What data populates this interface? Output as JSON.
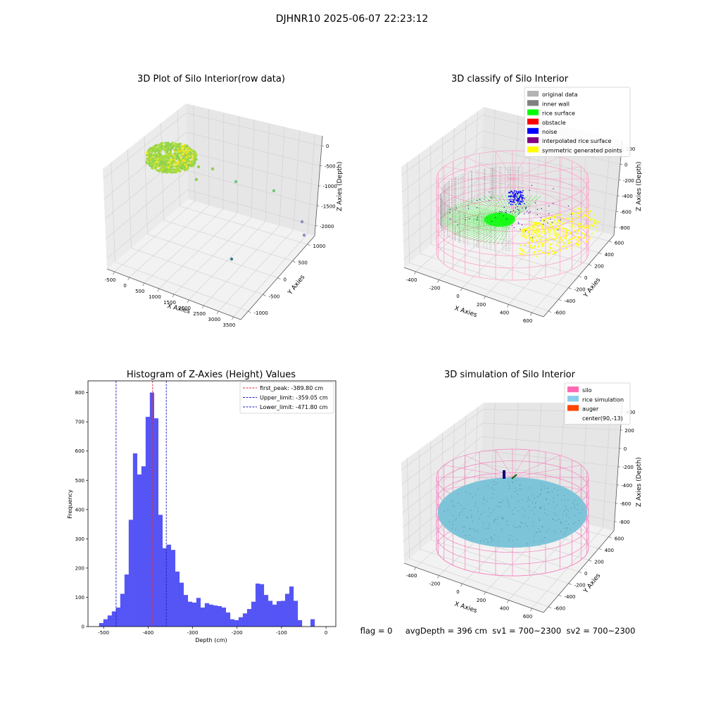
{
  "figure": {
    "suptitle": "DJHNR10 2025-06-07 22:23:12",
    "status_line": "flag = 0     avgDepth = 396 cm  sv1 = 700~2300  sv2 = 700~2300"
  },
  "chart_data": [
    {
      "id": "raw",
      "type": "scatter",
      "title": "3D Plot of Silo Interior(row data)",
      "xlabel": "X Axies",
      "ylabel": "Y Axies",
      "zlabel": "Z Axies (Depth)",
      "x_ticks": [
        "-500",
        "0",
        "500",
        "1000",
        "1500",
        "2000",
        "2500",
        "3000",
        "3500"
      ],
      "y_ticks": [
        "-1000",
        "-500",
        "0",
        "500",
        "1000"
      ],
      "z_ticks": [
        "0",
        "-500",
        "-1000",
        "-1500",
        "-2000"
      ],
      "xlim": [
        -600,
        3600
      ],
      "ylim": [
        -1200,
        1200
      ],
      "zlim": [
        -2400,
        100
      ],
      "outlier_points": [
        {
          "x": 300,
          "y": 200,
          "z": -500
        },
        {
          "x": 600,
          "y": 300,
          "z": -600
        },
        {
          "x": 500,
          "y": 100,
          "z": -700
        },
        {
          "x": 900,
          "y": 300,
          "z": -450
        },
        {
          "x": 1400,
          "y": 0,
          "z": -900
        },
        {
          "x": 2100,
          "y": -100,
          "z": -1050
        },
        {
          "x": 3300,
          "y": 300,
          "z": -2000
        },
        {
          "x": 3400,
          "y": 100,
          "z": -2300
        },
        {
          "x": 2300,
          "y": -800,
          "z": -2300
        }
      ],
      "colors": {
        "main": "#8fd14f",
        "yellow": "#f5e61e",
        "outlier_green": "#6cc97a",
        "outlier_purple": "#8a8fc2",
        "outlier_teal": "#3a7a8c"
      }
    },
    {
      "id": "classify",
      "type": "scatter",
      "title": "3D classify of Silo Interior",
      "xlabel": "X Axies",
      "ylabel": "Y Axies",
      "zlabel": "Z Axies (Depth)",
      "x_ticks": [
        "-400",
        "-200",
        "0",
        "200",
        "400",
        "600"
      ],
      "y_ticks": [
        "-600",
        "-400",
        "-200",
        "0",
        "200",
        "400",
        "600"
      ],
      "z_ticks": [
        "200",
        "0",
        "-200",
        "-400",
        "-600",
        "-800"
      ],
      "legend": [
        {
          "label": "original data",
          "color": "#b3b3b3"
        },
        {
          "label": "inner wall",
          "color": "#808080"
        },
        {
          "label": "rice surface",
          "color": "#00ff00"
        },
        {
          "label": "obstacle",
          "color": "#ff0000"
        },
        {
          "label": "noise",
          "color": "#0000ff"
        },
        {
          "label": "interpolated rice surface",
          "color": "#800080"
        },
        {
          "label": "symmetric generated points",
          "color": "#ffff00"
        }
      ],
      "legend_loc": "upper right",
      "silo_color": "#ff9cc8"
    },
    {
      "id": "histogram",
      "type": "bar",
      "title": "Histogram of Z-Axies (Height) Values",
      "xlabel": "Depth (cm)",
      "ylabel": "Frequency",
      "xlim": [
        -535,
        22
      ],
      "ylim": [
        0,
        840
      ],
      "x_ticks": [
        -500,
        -400,
        -300,
        -200,
        -100,
        0
      ],
      "y_ticks": [
        0,
        100,
        200,
        300,
        400,
        500,
        600,
        700,
        800
      ],
      "bin_width": 9.5,
      "bin_start": -510,
      "values": [
        12,
        25,
        38,
        52,
        65,
        112,
        178,
        365,
        592,
        520,
        548,
        717,
        800,
        712,
        382,
        268,
        280,
        262,
        188,
        150,
        108,
        85,
        82,
        98,
        65,
        80,
        75,
        72,
        70,
        65,
        48,
        25,
        22,
        32,
        45,
        60,
        85,
        147,
        145,
        108,
        88,
        75,
        87,
        88,
        112,
        137,
        88,
        22,
        0,
        0,
        25
      ],
      "bar_color": "#4c4cf5",
      "lines": [
        {
          "label": "first_peak: -389.80 cm",
          "x": -389.8,
          "color": "#e03030"
        },
        {
          "label": "Upper_limit: -359.05 cm",
          "x": -359.05,
          "color": "#2020c0"
        },
        {
          "label": "Lower_limit: -471.80 cm",
          "x": -471.8,
          "color": "#2020c0"
        }
      ],
      "legend_loc": "upper right"
    },
    {
      "id": "simulation",
      "type": "scatter",
      "title": "3D simulation of Silo Interior",
      "xlabel": "X Axies",
      "ylabel": "Y Axies",
      "zlabel": "Z Axies (Depth)",
      "x_ticks": [
        "-400",
        "-200",
        "0",
        "200",
        "400",
        "600"
      ],
      "y_ticks": [
        "-600",
        "-400",
        "-200",
        "0",
        "200",
        "400",
        "600"
      ],
      "z_ticks": [
        "400",
        "200",
        "0",
        "-200",
        "-400",
        "-600",
        "-800"
      ],
      "legend": [
        {
          "label": "silo",
          "color": "#ff69b4"
        },
        {
          "label": "rice simulation",
          "color": "#87ceeb"
        },
        {
          "label": "auger",
          "color": "#ff4500"
        },
        {
          "label": "center(90,-13)",
          "color": ""
        }
      ],
      "legend_loc": "upper right",
      "silo_color": "#f77fbf",
      "surface_color": "#7ec4d9"
    }
  ]
}
